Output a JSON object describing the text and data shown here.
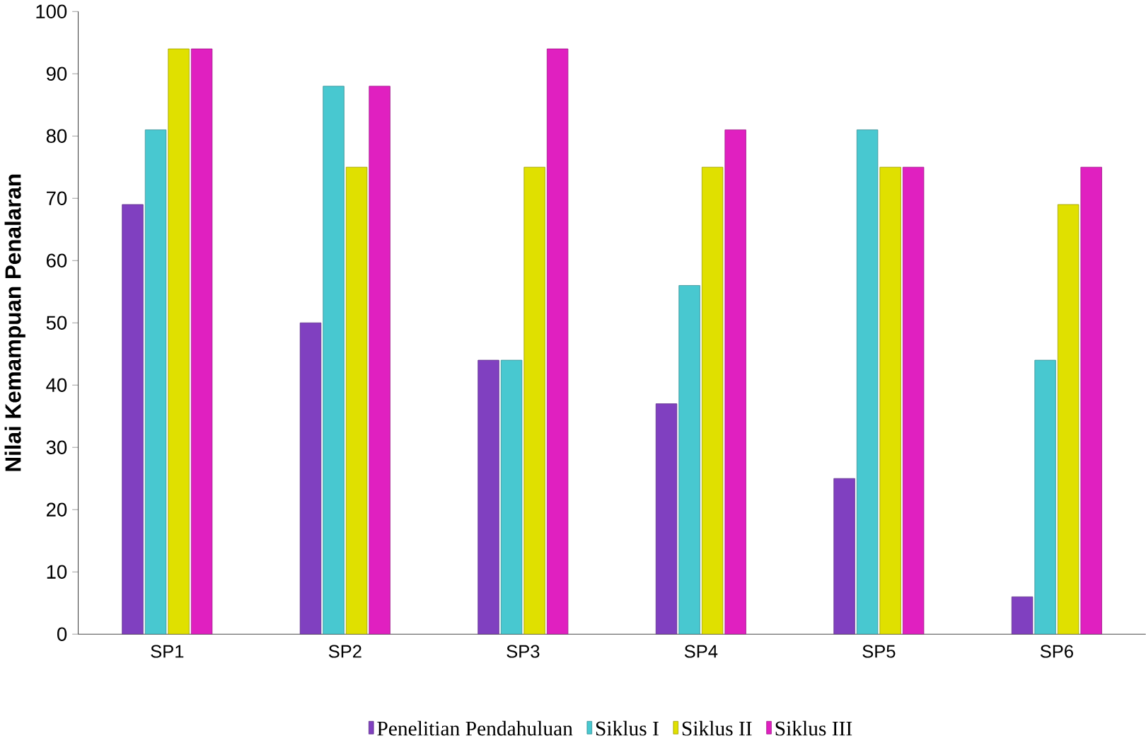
{
  "chart_data": {
    "type": "bar",
    "ylabel": "Nilai Kemampuan Penalaran",
    "categories": [
      "SP1",
      "SP2",
      "SP3",
      "SP4",
      "SP5",
      "SP6"
    ],
    "series": [
      {
        "name": "Penelitian Pendahuluan",
        "color": "#8040c0",
        "values": [
          69,
          50,
          44,
          37,
          25,
          6
        ]
      },
      {
        "name": "Siklus I",
        "color": "#48c8d0",
        "values": [
          81,
          88,
          44,
          56,
          81,
          44
        ]
      },
      {
        "name": "Siklus II",
        "color": "#e0e000",
        "values": [
          94,
          75,
          75,
          75,
          75,
          69
        ]
      },
      {
        "name": "Siklus III",
        "color": "#e020c0",
        "values": [
          94,
          88,
          94,
          81,
          75,
          75
        ]
      }
    ],
    "ylim": [
      0,
      100
    ],
    "yticks": [
      0,
      10,
      20,
      30,
      40,
      50,
      60,
      70,
      80,
      90,
      100
    ],
    "grid": false,
    "legend": "bottom"
  }
}
